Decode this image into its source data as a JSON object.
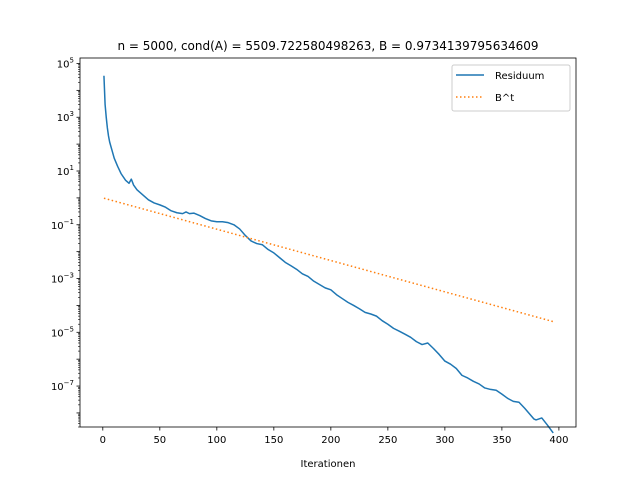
{
  "chart_data": {
    "type": "line",
    "title": "n = 5000, cond(A) = 5509.722580498263, B = 0.9734139795634609",
    "xlabel": "Iterationen",
    "ylabel": "",
    "yscale": "log",
    "xlim": [
      -20,
      415
    ],
    "ylim": [
      3e-09,
      160000.0
    ],
    "xticks": [
      0,
      50,
      100,
      150,
      200,
      250,
      300,
      350,
      400
    ],
    "yticks": [
      {
        "value": 100000.0,
        "base": "10",
        "exp": "5"
      },
      {
        "value": 1000.0,
        "base": "10",
        "exp": "3"
      },
      {
        "value": 10.0,
        "base": "10",
        "exp": "1"
      },
      {
        "value": 0.1,
        "base": "10",
        "exp": "−1"
      },
      {
        "value": 0.001,
        "base": "10",
        "exp": "−3"
      },
      {
        "value": 1e-05,
        "base": "10",
        "exp": "−5"
      },
      {
        "value": 1e-07,
        "base": "10",
        "exp": "−7"
      }
    ],
    "grid": false,
    "legend_position": "upper right",
    "series": [
      {
        "name": "Residuum",
        "style": "solid",
        "color": "#1f77b4",
        "x": [
          1,
          2,
          3,
          4,
          5,
          6,
          8,
          10,
          13,
          16,
          20,
          23,
          25,
          27,
          30,
          35,
          40,
          45,
          50,
          55,
          60,
          65,
          70,
          73,
          76,
          80,
          85,
          90,
          95,
          100,
          105,
          110,
          115,
          120,
          125,
          130,
          135,
          140,
          145,
          150,
          155,
          160,
          165,
          170,
          175,
          180,
          185,
          190,
          195,
          200,
          205,
          210,
          215,
          220,
          225,
          230,
          235,
          240,
          245,
          250,
          255,
          260,
          265,
          270,
          275,
          280,
          285,
          290,
          295,
          300,
          305,
          310,
          315,
          320,
          325,
          330,
          335,
          340,
          345,
          350,
          355,
          360,
          365,
          370,
          375,
          378,
          380,
          385,
          390,
          395
        ],
        "y": [
          35000,
          3000,
          1000,
          400,
          200,
          120,
          60,
          30,
          15,
          8,
          4.5,
          3.5,
          5,
          3,
          2.0,
          1.3,
          0.85,
          0.65,
          0.55,
          0.45,
          0.33,
          0.28,
          0.26,
          0.3,
          0.26,
          0.27,
          0.22,
          0.17,
          0.14,
          0.13,
          0.13,
          0.12,
          0.1,
          0.07,
          0.04,
          0.025,
          0.02,
          0.018,
          0.012,
          0.009,
          0.006,
          0.004,
          0.003,
          0.0022,
          0.0015,
          0.0012,
          0.0008,
          0.0006,
          0.00045,
          0.00038,
          0.00025,
          0.00018,
          0.00013,
          0.0001,
          7.5e-05,
          5.5e-05,
          4.8e-05,
          4e-05,
          2.7e-05,
          2e-05,
          1.4e-05,
          1.1e-05,
          8.5e-06,
          6.5e-06,
          4.5e-06,
          3.5e-06,
          4e-06,
          2.5e-06,
          1.5e-06,
          8.5e-07,
          6.5e-07,
          4.5e-07,
          2.5e-07,
          2e-07,
          1.5e-07,
          1.2e-07,
          8.5e-08,
          7.5e-08,
          7e-08,
          5e-08,
          3.5e-08,
          2.7e-08,
          2.5e-08,
          1.5e-08,
          8.5e-09,
          6e-09,
          5.5e-09,
          6.5e-09,
          3.5e-09,
          1.8e-09
        ]
      },
      {
        "name": "B^t",
        "style": "dotted",
        "color": "#ff7f0e",
        "x": [
          1,
          395
        ],
        "y": [
          0.9734139795634609,
          2.5e-05
        ]
      }
    ]
  }
}
